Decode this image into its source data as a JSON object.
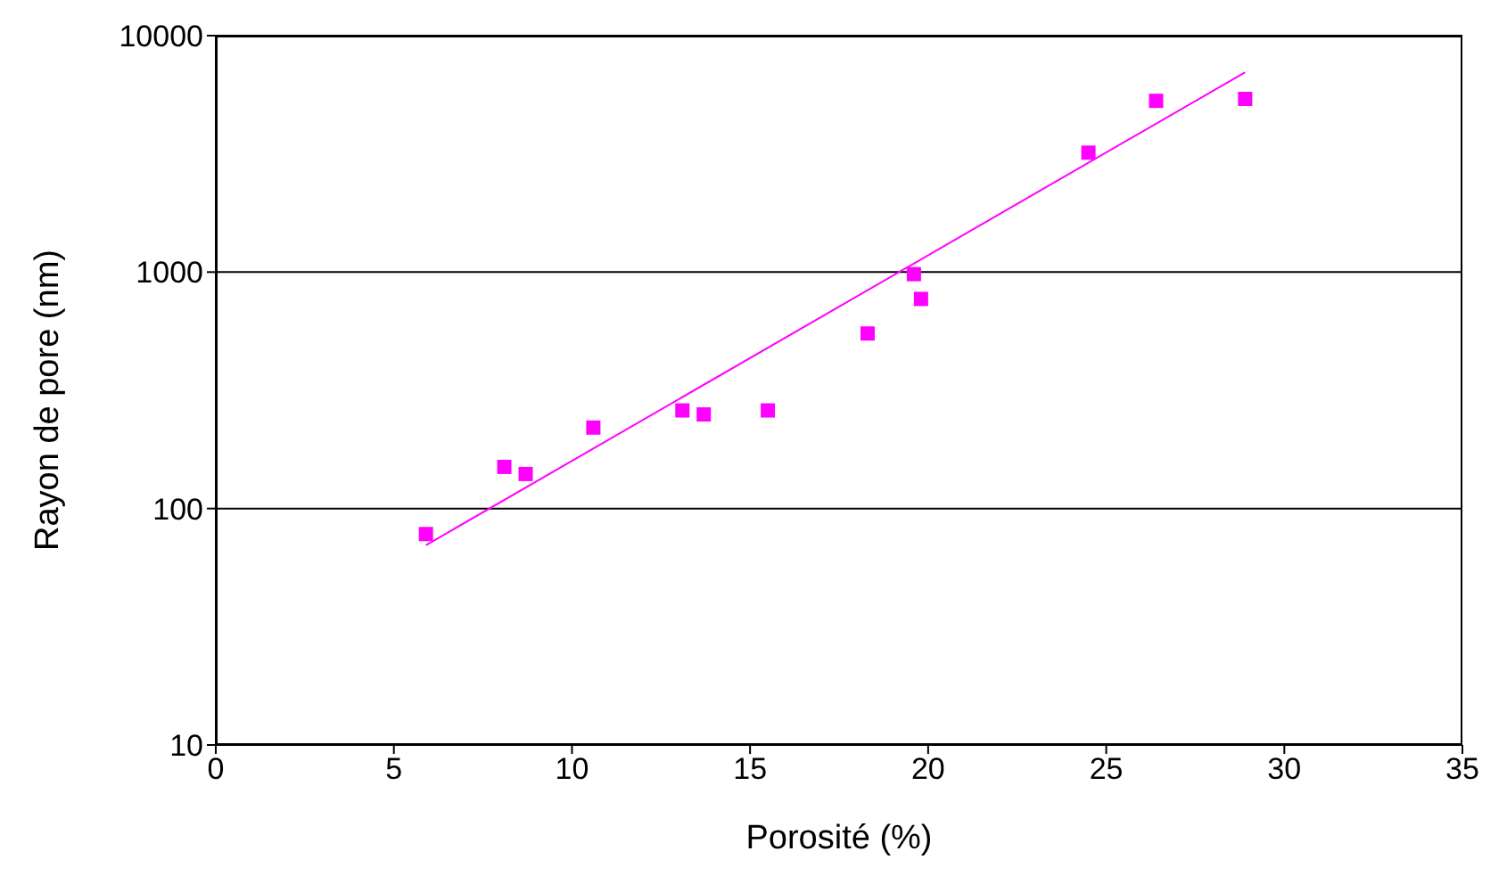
{
  "chart_data": {
    "type": "scatter",
    "xlabel": "Porosité (%)",
    "ylabel": "Rayon de pore (nm)",
    "xlim": [
      0,
      35
    ],
    "xticks": [
      0,
      5,
      10,
      15,
      20,
      25,
      30,
      35
    ],
    "ylim": [
      10,
      10000
    ],
    "yticks": [
      10,
      100,
      1000,
      10000
    ],
    "log": "y",
    "grid": "y",
    "marker": "square",
    "series": [
      {
        "color": "#ff00ff",
        "x": [
          5.9,
          8.1,
          8.7,
          10.6,
          13.1,
          13.7,
          15.5,
          18.3,
          19.6,
          19.8,
          24.5,
          26.4,
          28.9
        ],
        "values": [
          78,
          150,
          140,
          220,
          260,
          250,
          260,
          550,
          980,
          770,
          3200,
          5300,
          5400
        ]
      },
      {
        "type": "line",
        "color": "#ff00ff",
        "marker": "none",
        "x": [
          5.9,
          28.9
        ],
        "values": [
          70,
          7000
        ]
      }
    ]
  }
}
